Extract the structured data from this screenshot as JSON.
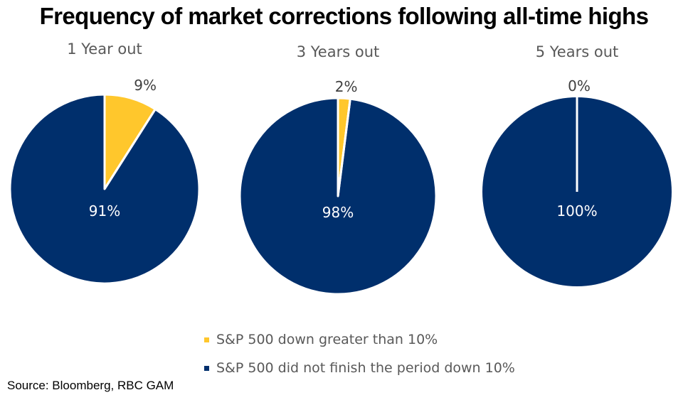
{
  "chart_data": {
    "type": "pie",
    "title": "Frequency of market corrections following all-time highs",
    "legend_position": "bottom-center",
    "series_names": [
      "S&P 500 down greater than 10%",
      "S&P 500 did not finish the period down 10%"
    ],
    "colors": {
      "down": "#FFC72C",
      "not_down": "#002F6C",
      "separator": "#ffffff"
    },
    "pies": [
      {
        "title": "1 Year out",
        "slices": [
          {
            "name": "S&P 500 down greater than 10%",
            "value": 9,
            "label": "9%"
          },
          {
            "name": "S&P 500 did not finish the period down 10%",
            "value": 91,
            "label": "91%"
          }
        ]
      },
      {
        "title": "3 Years out",
        "slices": [
          {
            "name": "S&P 500 down greater than 10%",
            "value": 2,
            "label": "2%"
          },
          {
            "name": "S&P 500 did not finish the period down 10%",
            "value": 98,
            "label": "98%"
          }
        ]
      },
      {
        "title": "5 Years out",
        "slices": [
          {
            "name": "S&P 500 down greater than 10%",
            "value": 0,
            "label": "0%"
          },
          {
            "name": "S&P 500 did not finish the period down 10%",
            "value": 100,
            "label": "100%"
          }
        ]
      }
    ]
  },
  "legend": {
    "items": [
      {
        "label": "S&P 500 down greater than 10%",
        "color": "#FFC72C"
      },
      {
        "label": "S&P 500 did not finish the period down 10%",
        "color": "#002F6C"
      }
    ]
  },
  "source": "Source: Bloomberg, RBC GAM"
}
